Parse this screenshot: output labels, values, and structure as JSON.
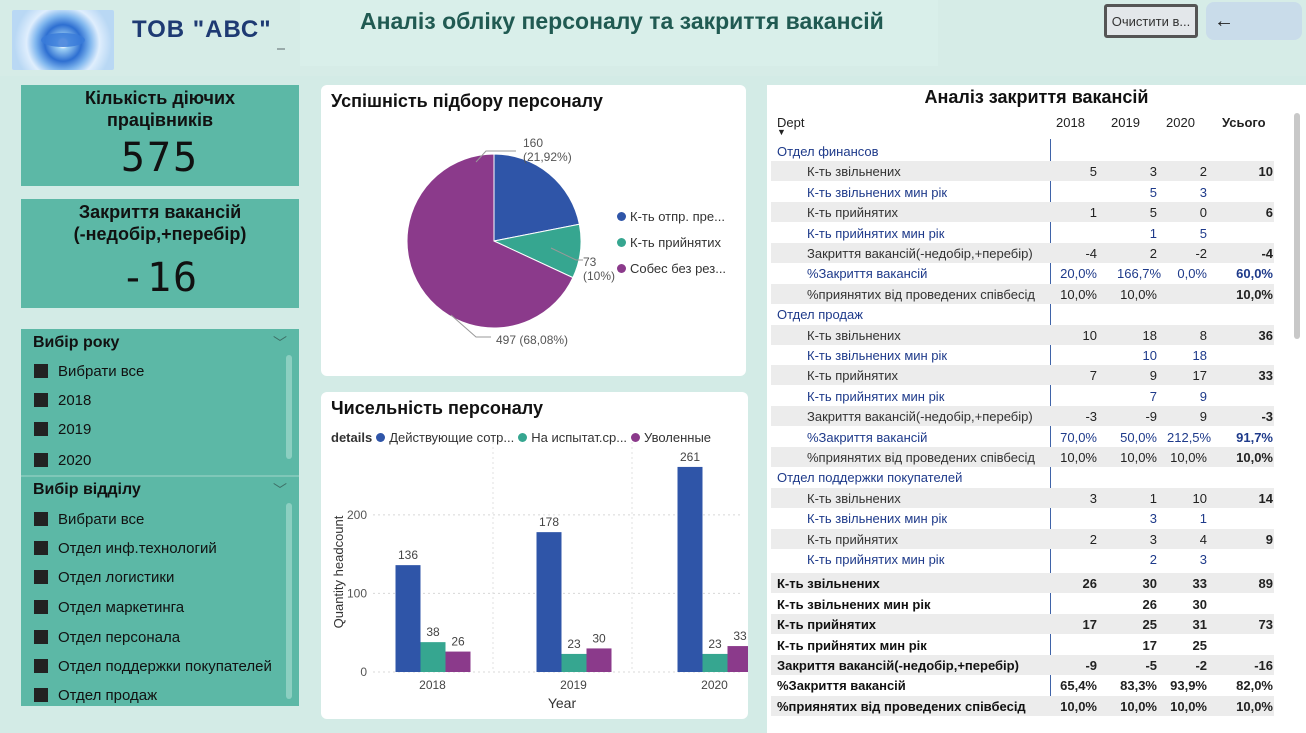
{
  "header": {
    "company": "ТОВ \"АВС\"",
    "title": "Аналіз обліку персоналу та закриття вакансій",
    "clear_button": "Очистити в...",
    "back_icon": "arrow-left-icon",
    "back_glyph": "←"
  },
  "kpis": [
    {
      "label_line1": "Кількість діючих",
      "label_line2": "працівників",
      "value": "575"
    },
    {
      "label_line1": "Закриття вакансій",
      "label_line2": "(-недобір,+перебір)",
      "value": "-16"
    }
  ],
  "slicers": {
    "year": {
      "title": "Вибір року",
      "items": [
        "Вибрати все",
        "2018",
        "2019",
        "2020"
      ]
    },
    "dept": {
      "title": "Вибір відділу",
      "items": [
        "Вибрати все",
        "Отдел инф.технологий",
        "Отдел логистики",
        "Отдел маркетинга",
        "Отдел персонала",
        "Отдел поддержки покупателей",
        "Отдел продаж"
      ]
    }
  },
  "pie": {
    "title": "Успішність підбору персоналу",
    "labels": [
      {
        "value": "160",
        "pct": "(21,92%)"
      },
      {
        "value": "73",
        "pct": "(10%)"
      },
      {
        "value": "497 (68,08%)",
        "pct": ""
      }
    ],
    "legend": [
      "К-ть отпр. пре...",
      "К-ть прийнятих",
      "Собес без рез..."
    ]
  },
  "bar": {
    "title": "Чисельність персоналу",
    "legend_label": "details",
    "legend": [
      "Действующие сотр...",
      "На испытат.ср...",
      "Уволенные"
    ],
    "ylabel": "Quantity headcount",
    "xlabel": "Year",
    "yticks": [
      "0",
      "100",
      "200"
    ]
  },
  "colors": {
    "blue": "#2f55a8",
    "teal": "#36a690",
    "purple": "#8b3a8b",
    "panel": "#5cb8a6"
  },
  "chart_data": [
    {
      "type": "pie",
      "title": "Успішність підбору персоналу",
      "categories": [
        "К-ть отпр. пре...",
        "К-ть прийнятих",
        "Собес без рез..."
      ],
      "values": [
        160,
        73,
        497
      ],
      "percent": [
        21.92,
        10,
        68.08
      ],
      "legend": "right"
    },
    {
      "type": "bar",
      "title": "Чисельність персоналу",
      "categories": [
        "2018",
        "2019",
        "2020"
      ],
      "series": [
        {
          "name": "Действующие сотр...",
          "values": [
            136,
            178,
            261
          ]
        },
        {
          "name": "На испытат.ср...",
          "values": [
            38,
            23,
            23
          ]
        },
        {
          "name": "Уволенные",
          "values": [
            26,
            30,
            33
          ]
        }
      ],
      "xlabel": "Year",
      "ylabel": "Quantity headcount",
      "ylim": [
        0,
        280
      ],
      "grid": true,
      "legend": "top-left"
    }
  ],
  "table": {
    "title": "Аналіз закриття вакансій",
    "columns": [
      "Dept",
      "2018",
      "2019",
      "2020",
      "Усього"
    ],
    "rows": [
      {
        "kind": "group",
        "label": "Отдел финансов",
        "v": [
          "",
          "",
          "",
          ""
        ]
      },
      {
        "kind": "metric",
        "label": "К-ть звільнених",
        "v": [
          "5",
          "3",
          "2",
          "10"
        ]
      },
      {
        "kind": "metric blue",
        "label": "К-ть звільнених мин рік",
        "v": [
          "",
          "5",
          "3",
          ""
        ]
      },
      {
        "kind": "metric",
        "label": "К-ть прийнятих",
        "v": [
          "1",
          "5",
          "0",
          "6"
        ]
      },
      {
        "kind": "metric blue",
        "label": "К-ть прийнятих мин рік",
        "v": [
          "",
          "1",
          "5",
          ""
        ]
      },
      {
        "kind": "metric",
        "label": "Закриття вакансій(-недобір,+перебір)",
        "v": [
          "-4",
          "2",
          "-2",
          "-4"
        ]
      },
      {
        "kind": "metric blue",
        "label": "%Закриття вакансій",
        "v": [
          "20,0%",
          "166,7%",
          "0,0%",
          "60,0%"
        ]
      },
      {
        "kind": "metric",
        "label": "%приянятих від проведених співбесід",
        "v": [
          "10,0%",
          "10,0%",
          "",
          "10,0%"
        ]
      },
      {
        "kind": "group",
        "label": "Отдел продаж",
        "v": [
          "",
          "",
          "",
          ""
        ]
      },
      {
        "kind": "metric",
        "label": "К-ть звільнених",
        "v": [
          "10",
          "18",
          "8",
          "36"
        ]
      },
      {
        "kind": "metric blue",
        "label": "К-ть звільнених мин рік",
        "v": [
          "",
          "10",
          "18",
          ""
        ]
      },
      {
        "kind": "metric",
        "label": "К-ть прийнятих",
        "v": [
          "7",
          "9",
          "17",
          "33"
        ]
      },
      {
        "kind": "metric blue",
        "label": "К-ть прийнятих мин рік",
        "v": [
          "",
          "7",
          "9",
          ""
        ]
      },
      {
        "kind": "metric",
        "label": "Закриття вакансій(-недобір,+перебір)",
        "v": [
          "-3",
          "-9",
          "9",
          "-3"
        ]
      },
      {
        "kind": "metric blue",
        "label": "%Закриття вакансій",
        "v": [
          "70,0%",
          "50,0%",
          "212,5%",
          "91,7%"
        ]
      },
      {
        "kind": "metric",
        "label": "%приянятих від проведених співбесід",
        "v": [
          "10,0%",
          "10,0%",
          "10,0%",
          "10,0%"
        ]
      },
      {
        "kind": "group",
        "label": "Отдел поддержки покупателей",
        "v": [
          "",
          "",
          "",
          ""
        ]
      },
      {
        "kind": "metric",
        "label": "К-ть звільнених",
        "v": [
          "3",
          "1",
          "10",
          "14"
        ]
      },
      {
        "kind": "metric blue",
        "label": "К-ть звільнених мин рік",
        "v": [
          "",
          "3",
          "1",
          ""
        ]
      },
      {
        "kind": "metric",
        "label": "К-ть прийнятих",
        "v": [
          "2",
          "3",
          "4",
          "9"
        ]
      },
      {
        "kind": "metric blue",
        "label": "К-ть прийнятих мин рік",
        "v": [
          "",
          "2",
          "3",
          ""
        ]
      },
      {
        "kind": "total",
        "label": "К-ть звільнених",
        "v": [
          "26",
          "30",
          "33",
          "89"
        ]
      },
      {
        "kind": "total",
        "label": "К-ть звільнених мин рік",
        "v": [
          "",
          "26",
          "30",
          ""
        ]
      },
      {
        "kind": "total",
        "label": "К-ть прийнятих",
        "v": [
          "17",
          "25",
          "31",
          "73"
        ]
      },
      {
        "kind": "total",
        "label": "К-ть прийнятих мин рік",
        "v": [
          "",
          "17",
          "25",
          ""
        ]
      },
      {
        "kind": "total",
        "label": "Закриття вакансій(-недобір,+перебір)",
        "v": [
          "-9",
          "-5",
          "-2",
          "-16"
        ]
      },
      {
        "kind": "total",
        "label": "%Закриття вакансій",
        "v": [
          "65,4%",
          "83,3%",
          "93,9%",
          "82,0%"
        ]
      },
      {
        "kind": "total",
        "label": "%приянятих від проведених співбесід",
        "v": [
          "10,0%",
          "10,0%",
          "10,0%",
          "10,0%"
        ]
      }
    ]
  }
}
